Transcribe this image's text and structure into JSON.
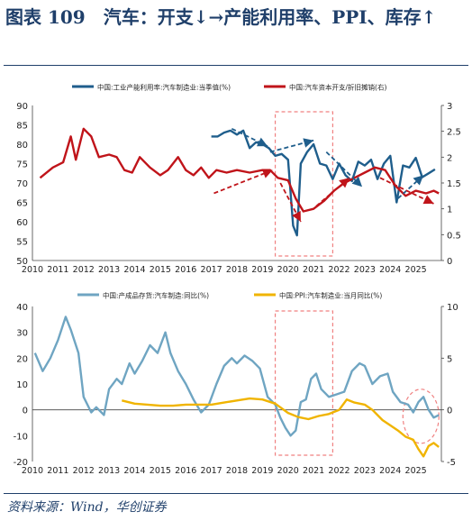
{
  "figure": {
    "title": "图表 109　汽车：开支↓→产能利用率、PPI、库存↑",
    "source": "资料来源：Wind，华创证券"
  },
  "chart_data": [
    {
      "type": "line",
      "x_axis_ticks": [
        "2010",
        "2011",
        "2012",
        "2013",
        "2014",
        "2015",
        "2016",
        "2017",
        "2018",
        "2019",
        "2020",
        "2021",
        "2022",
        "2023",
        "2024",
        "2025"
      ],
      "left_axis": {
        "ylim": [
          50,
          90
        ],
        "ticks": [
          "50",
          "55",
          "60",
          "65",
          "70",
          "75",
          "80",
          "85",
          "90"
        ]
      },
      "right_axis": {
        "ylim": [
          0,
          3
        ],
        "ticks": [
          "0",
          "0.5",
          "1",
          "1.5",
          "2",
          "2.5",
          "3"
        ]
      },
      "series": [
        {
          "name": "中国:工业产能利用率:汽车制造业:当季值(%)",
          "axis": "left",
          "color": "#1f5e8c",
          "points": [
            [
              2017.0,
              82
            ],
            [
              2017.25,
              82
            ],
            [
              2017.5,
              83
            ],
            [
              2017.75,
              83.5
            ],
            [
              2018.0,
              82.5
            ],
            [
              2018.25,
              83.5
            ],
            [
              2018.5,
              79
            ],
            [
              2018.75,
              80.5
            ],
            [
              2019.0,
              80
            ],
            [
              2019.25,
              79
            ],
            [
              2019.5,
              77
            ],
            [
              2019.75,
              77.5
            ],
            [
              2020.0,
              76
            ],
            [
              2020.2,
              59
            ],
            [
              2020.35,
              56.5
            ],
            [
              2020.5,
              75
            ],
            [
              2020.75,
              78
            ],
            [
              2021.0,
              80
            ],
            [
              2021.25,
              75
            ],
            [
              2021.5,
              74.5
            ],
            [
              2021.75,
              71
            ],
            [
              2022.0,
              75
            ],
            [
              2022.25,
              72
            ],
            [
              2022.5,
              70.5
            ],
            [
              2022.75,
              75.5
            ],
            [
              2023.0,
              74.5
            ],
            [
              2023.25,
              76
            ],
            [
              2023.5,
              71
            ],
            [
              2023.75,
              75
            ],
            [
              2024.0,
              77
            ],
            [
              2024.25,
              65
            ],
            [
              2024.5,
              74.5
            ],
            [
              2024.75,
              74
            ],
            [
              2025.0,
              76.5
            ],
            [
              2025.25,
              71.5
            ],
            [
              2025.5,
              72.5
            ],
            [
              2025.75,
              73.5
            ]
          ]
        },
        {
          "name": "中国:汽车资本开支/折旧摊销(右)",
          "axis": "right",
          "color": "#c0141a",
          "points": [
            [
              2010.3,
              1.6
            ],
            [
              2010.8,
              1.8
            ],
            [
              2011.2,
              1.9
            ],
            [
              2011.5,
              2.4
            ],
            [
              2011.7,
              1.95
            ],
            [
              2012.0,
              2.55
            ],
            [
              2012.3,
              2.4
            ],
            [
              2012.6,
              2.0
            ],
            [
              2013.0,
              2.05
            ],
            [
              2013.3,
              2.0
            ],
            [
              2013.6,
              1.75
            ],
            [
              2013.9,
              1.7
            ],
            [
              2014.2,
              2.0
            ],
            [
              2014.6,
              1.8
            ],
            [
              2015.0,
              1.65
            ],
            [
              2015.3,
              1.75
            ],
            [
              2015.7,
              2.0
            ],
            [
              2016.0,
              1.75
            ],
            [
              2016.3,
              1.65
            ],
            [
              2016.6,
              1.8
            ],
            [
              2016.9,
              1.6
            ],
            [
              2017.2,
              1.75
            ],
            [
              2017.6,
              1.7
            ],
            [
              2018.0,
              1.75
            ],
            [
              2018.5,
              1.7
            ],
            [
              2019.0,
              1.75
            ],
            [
              2019.3,
              1.75
            ],
            [
              2019.6,
              1.6
            ],
            [
              2020.0,
              1.55
            ],
            [
              2020.3,
              1.2
            ],
            [
              2020.6,
              0.95
            ],
            [
              2021.0,
              1.0
            ],
            [
              2021.4,
              1.15
            ],
            [
              2021.8,
              1.35
            ],
            [
              2022.2,
              1.5
            ],
            [
              2022.6,
              1.6
            ],
            [
              2023.0,
              1.7
            ],
            [
              2023.4,
              1.8
            ],
            [
              2023.8,
              1.75
            ],
            [
              2024.2,
              1.45
            ],
            [
              2024.6,
              1.25
            ],
            [
              2025.0,
              1.35
            ],
            [
              2025.4,
              1.3
            ],
            [
              2025.7,
              1.35
            ],
            [
              2025.9,
              1.3
            ]
          ]
        }
      ],
      "arrows": [
        {
          "color": "#1f5e8c",
          "dashed": true,
          "from": [
            2017.8,
            84
          ],
          "to": [
            2019.2,
            79.5
          ]
        },
        {
          "color": "#1f5e8c",
          "dashed": true,
          "from": [
            2019.3,
            78
          ],
          "to": [
            2021.0,
            81
          ]
        },
        {
          "color": "#1f5e8c",
          "dashed": true,
          "from": [
            2021.5,
            78
          ],
          "to": [
            2022.9,
            69
          ]
        },
        {
          "color": "#1f5e8c",
          "dashed": true,
          "from": [
            2024.3,
            66
          ],
          "to": [
            2025.3,
            72
          ]
        },
        {
          "color": "#c0141a",
          "dashed": true,
          "from": [
            2017.1,
            1.3
          ],
          "to": [
            2019.4,
            1.75
          ]
        },
        {
          "color": "#c0141a",
          "dashed": true,
          "from": [
            2019.7,
            1.5
          ],
          "to": [
            2020.5,
            0.75
          ]
        },
        {
          "color": "#c0141a",
          "dashed": true,
          "from": [
            2021.1,
            1.05
          ],
          "to": [
            2022.4,
            1.6
          ]
        },
        {
          "color": "#c0141a",
          "dashed": true,
          "from": [
            2023.6,
            1.6
          ],
          "to": [
            2025.7,
            1.1
          ]
        }
      ]
    },
    {
      "type": "line",
      "x_axis_ticks": [
        "2010",
        "2011",
        "2012",
        "2013",
        "2014",
        "2015",
        "2016",
        "2017",
        "2018",
        "2019",
        "2020",
        "2021",
        "2022",
        "2023",
        "2024",
        "2025"
      ],
      "left_axis": {
        "ylim": [
          -20,
          40
        ],
        "ticks": [
          "-20",
          "-10",
          "0",
          "10",
          "20",
          "30",
          "40"
        ]
      },
      "right_axis": {
        "ylim": [
          -5,
          10
        ],
        "ticks": [
          "-5",
          "0",
          "5",
          "10"
        ]
      },
      "series": [
        {
          "name": "中国:产成品存货:汽车制造:同比(%)",
          "axis": "left",
          "color": "#6fa5c2",
          "points": [
            [
              2010.1,
              22
            ],
            [
              2010.4,
              15
            ],
            [
              2010.7,
              20
            ],
            [
              2011.0,
              27
            ],
            [
              2011.3,
              36
            ],
            [
              2011.5,
              31
            ],
            [
              2011.8,
              22
            ],
            [
              2012.0,
              5
            ],
            [
              2012.3,
              -1
            ],
            [
              2012.5,
              1
            ],
            [
              2012.8,
              -2
            ],
            [
              2013.0,
              8
            ],
            [
              2013.3,
              12
            ],
            [
              2013.5,
              10
            ],
            [
              2013.8,
              18
            ],
            [
              2014.0,
              14
            ],
            [
              2014.3,
              19
            ],
            [
              2014.6,
              25
            ],
            [
              2014.9,
              22
            ],
            [
              2015.2,
              30
            ],
            [
              2015.4,
              22
            ],
            [
              2015.7,
              15
            ],
            [
              2016.0,
              10
            ],
            [
              2016.3,
              4
            ],
            [
              2016.6,
              -1
            ],
            [
              2016.9,
              2
            ],
            [
              2017.2,
              10
            ],
            [
              2017.5,
              17
            ],
            [
              2017.8,
              20
            ],
            [
              2018.0,
              18
            ],
            [
              2018.3,
              21
            ],
            [
              2018.6,
              19
            ],
            [
              2018.9,
              16
            ],
            [
              2019.2,
              5
            ],
            [
              2019.5,
              2
            ],
            [
              2019.7,
              -3
            ],
            [
              2019.9,
              -7
            ],
            [
              2020.1,
              -10
            ],
            [
              2020.3,
              -8
            ],
            [
              2020.5,
              3
            ],
            [
              2020.7,
              4
            ],
            [
              2020.9,
              12
            ],
            [
              2021.1,
              14
            ],
            [
              2021.3,
              8
            ],
            [
              2021.6,
              5
            ],
            [
              2021.9,
              6
            ],
            [
              2022.2,
              7
            ],
            [
              2022.5,
              15
            ],
            [
              2022.8,
              18
            ],
            [
              2023.0,
              17
            ],
            [
              2023.3,
              10
            ],
            [
              2023.6,
              13
            ],
            [
              2023.9,
              14
            ],
            [
              2024.1,
              7
            ],
            [
              2024.4,
              3
            ],
            [
              2024.7,
              2
            ],
            [
              2024.9,
              -1
            ],
            [
              2025.1,
              3
            ],
            [
              2025.3,
              5
            ],
            [
              2025.5,
              0
            ],
            [
              2025.7,
              -3
            ],
            [
              2025.9,
              -2
            ]
          ]
        },
        {
          "name": "中国:PPI:汽车制造业:当月同比(%)",
          "axis": "right",
          "color": "#f0b400",
          "points": [
            [
              2013.5,
              0.9
            ],
            [
              2014.0,
              0.6
            ],
            [
              2014.5,
              0.5
            ],
            [
              2015.0,
              0.4
            ],
            [
              2015.5,
              0.4
            ],
            [
              2016.0,
              0.5
            ],
            [
              2016.5,
              0.5
            ],
            [
              2017.0,
              0.5
            ],
            [
              2017.5,
              0.7
            ],
            [
              2018.0,
              0.9
            ],
            [
              2018.5,
              1.1
            ],
            [
              2019.0,
              1.0
            ],
            [
              2019.5,
              0.6
            ],
            [
              2020.0,
              -0.3
            ],
            [
              2020.4,
              -0.7
            ],
            [
              2020.8,
              -0.9
            ],
            [
              2021.2,
              -0.6
            ],
            [
              2021.6,
              -0.4
            ],
            [
              2022.0,
              0.0
            ],
            [
              2022.3,
              1.0
            ],
            [
              2022.6,
              0.7
            ],
            [
              2023.0,
              0.5
            ],
            [
              2023.3,
              0.0
            ],
            [
              2023.7,
              -1.0
            ],
            [
              2024.0,
              -1.5
            ],
            [
              2024.3,
              -2.0
            ],
            [
              2024.6,
              -2.6
            ],
            [
              2024.9,
              -2.9
            ],
            [
              2025.1,
              -3.8
            ],
            [
              2025.3,
              -4.5
            ],
            [
              2025.5,
              -3.5
            ],
            [
              2025.7,
              -3.2
            ],
            [
              2025.9,
              -3.6
            ]
          ]
        }
      ],
      "arrows": [],
      "highlight": {
        "rect_years": [
          2019.5,
          2021.75
        ],
        "ellipse_center": [
          2025.2,
          -2.5
        ]
      }
    }
  ]
}
